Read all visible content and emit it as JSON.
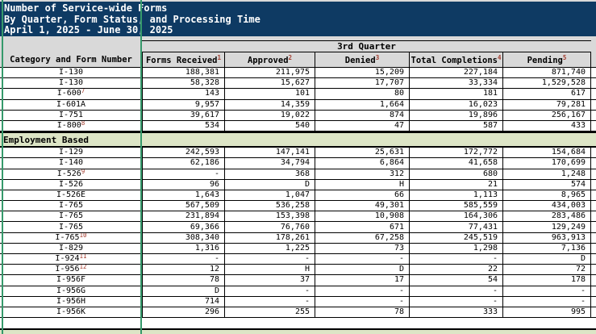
{
  "title": {
    "lines": [
      "Number of Service-wide Forms",
      "By Quarter, Form Status, and Processing Time",
      "April 1, 2025 - June 30, 2025"
    ]
  },
  "table": {
    "group_header": "3rd Quarter",
    "row_header_label": "Category and Form Number",
    "columns": [
      {
        "label": "Forms Received",
        "footnote": "1"
      },
      {
        "label": "Approved",
        "footnote": "2"
      },
      {
        "label": "Denied",
        "footnote": "3"
      },
      {
        "label": "Total Completions",
        "footnote": "4"
      },
      {
        "label": "Pending",
        "footnote": "5"
      }
    ],
    "rows": [
      {
        "type": "data",
        "form": "I-130",
        "footnote": "",
        "values": [
          "188,381",
          "211,975",
          "15,209",
          "227,184",
          "871,740"
        ]
      },
      {
        "type": "data",
        "form": "I-130",
        "footnote": "",
        "values": [
          "58,328",
          "15,627",
          "17,707",
          "33,334",
          "1,529,528"
        ]
      },
      {
        "type": "data",
        "form": "I-600",
        "footnote": "7",
        "values": [
          "143",
          "101",
          "80",
          "181",
          "617"
        ]
      },
      {
        "type": "data",
        "form": "I-601A",
        "footnote": "",
        "values": [
          "9,957",
          "14,359",
          "1,664",
          "16,023",
          "79,281"
        ]
      },
      {
        "type": "data",
        "form": "I-751",
        "footnote": "",
        "values": [
          "39,617",
          "19,022",
          "874",
          "19,896",
          "256,167"
        ]
      },
      {
        "type": "data",
        "form": "I-800",
        "footnote": "8",
        "values": [
          "534",
          "540",
          "47",
          "587",
          "433"
        ]
      },
      {
        "type": "section",
        "label": "Employment Based"
      },
      {
        "type": "data",
        "form": "I-129",
        "footnote": "",
        "values": [
          "242,593",
          "147,141",
          "25,631",
          "172,772",
          "154,684"
        ]
      },
      {
        "type": "data",
        "form": "I-140",
        "footnote": "",
        "values": [
          "62,186",
          "34,794",
          "6,864",
          "41,658",
          "170,699"
        ]
      },
      {
        "type": "data",
        "form": "I-526",
        "footnote": "9",
        "values": [
          "-",
          "368",
          "312",
          "680",
          "1,248"
        ]
      },
      {
        "type": "data",
        "form": "I-526",
        "footnote": "",
        "values": [
          "96",
          "D",
          "H",
          "21",
          "574"
        ]
      },
      {
        "type": "data",
        "form": "I-526E",
        "footnote": "",
        "values": [
          "1,643",
          "1,047",
          "66",
          "1,113",
          "8,965"
        ]
      },
      {
        "type": "data",
        "form": "I-765",
        "footnote": "",
        "values": [
          "567,509",
          "536,258",
          "49,301",
          "585,559",
          "434,003"
        ]
      },
      {
        "type": "data",
        "form": "I-765",
        "footnote": "",
        "values": [
          "231,894",
          "153,398",
          "10,908",
          "164,306",
          "283,486"
        ]
      },
      {
        "type": "data",
        "form": "I-765",
        "footnote": "",
        "values": [
          "69,366",
          "76,760",
          "671",
          "77,431",
          "129,249"
        ]
      },
      {
        "type": "data",
        "form": "I-765",
        "footnote": "10",
        "values": [
          "308,340",
          "178,261",
          "67,258",
          "245,519",
          "963,913"
        ]
      },
      {
        "type": "data",
        "form": "I-829",
        "footnote": "",
        "values": [
          "1,316",
          "1,225",
          "73",
          "1,298",
          "7,136"
        ]
      },
      {
        "type": "data",
        "form": "I-924",
        "footnote": "11",
        "values": [
          "-",
          "-",
          "-",
          "-",
          "D"
        ]
      },
      {
        "type": "data",
        "form": "I-956",
        "footnote": "12",
        "values": [
          "12",
          "H",
          "D",
          "22",
          "72"
        ]
      },
      {
        "type": "data",
        "form": "I-956F",
        "footnote": "",
        "values": [
          "78",
          "37",
          "17",
          "54",
          "178"
        ]
      },
      {
        "type": "data",
        "form": "I-956G",
        "footnote": "",
        "values": [
          "D",
          "-",
          "-",
          "-",
          "-"
        ]
      },
      {
        "type": "data",
        "form": "I-956H",
        "footnote": "",
        "values": [
          "714",
          "-",
          "-",
          "-",
          "-"
        ]
      },
      {
        "type": "data",
        "form": "I-956K",
        "footnote": "",
        "values": [
          "296",
          "255",
          "78",
          "333",
          "995"
        ]
      }
    ]
  },
  "colors": {
    "banner_bg": "#0e3a63",
    "header_bg": "#d9d9d9",
    "section_bg": "#dde5c6",
    "freeze_line": "#35996b",
    "footnote": "#a33c2e",
    "border": "#000000"
  }
}
